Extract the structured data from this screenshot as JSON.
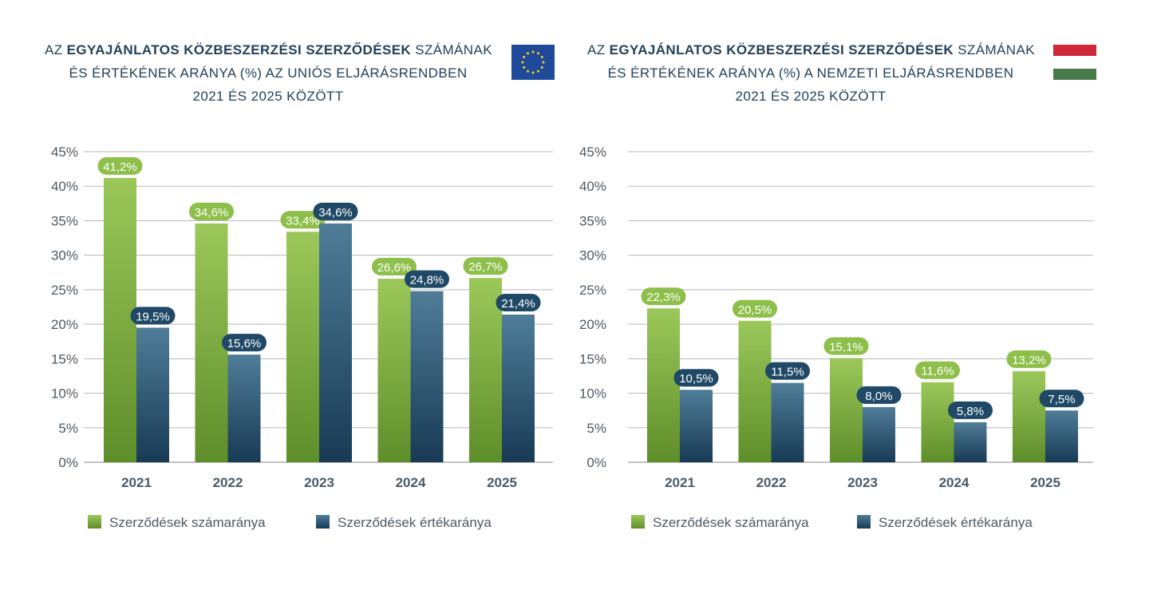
{
  "chart_data": [
    {
      "type": "bar",
      "title_parts": {
        "prefix": "AZ ",
        "bold": "EGYAJÁNLATOS KÖZBESZERZÉSI SZERZŐDÉSEK",
        "suffix": " SZÁMÁNAK",
        "line2": "ÉS ÉRTÉKÉNEK ARÁNYA (%) AZ UNIÓS ELJÁRÁSRENDBEN",
        "line3": "2021 ÉS 2025 KÖZÖTT"
      },
      "flag": "eu-flag",
      "categories": [
        "2021",
        "2022",
        "2023",
        "2024",
        "2025"
      ],
      "series": [
        {
          "name": "Szerződések számaránya",
          "values": [
            41.2,
            34.6,
            33.4,
            26.6,
            26.7
          ],
          "labels": [
            "41,2%",
            "34,6%",
            "33,4%",
            "26,6%",
            "26,7%"
          ],
          "color": "#8dbf4a"
        },
        {
          "name": "Szerződések értékaránya",
          "values": [
            19.5,
            15.6,
            34.6,
            24.8,
            21.4
          ],
          "labels": [
            "19,5%",
            "15,6%",
            "34,6%",
            "24,8%",
            "21,4%"
          ],
          "color": "#1f4966"
        }
      ],
      "ylim": [
        0,
        45
      ],
      "yticks": [
        "0%",
        "5%",
        "10%",
        "15%",
        "20%",
        "25%",
        "30%",
        "35%",
        "40%",
        "45%"
      ],
      "grid": true,
      "legend": "bottom"
    },
    {
      "type": "bar",
      "title_parts": {
        "prefix": "AZ ",
        "bold": "EGYAJÁNLATOS KÖZBESZERZÉSI SZERZŐDÉSEK",
        "suffix": " SZÁMÁNAK",
        "line2": "ÉS ÉRTÉKÉNEK ARÁNYA (%) A NEMZETI ELJÁRÁSRENDBEN",
        "line3": "2021 ÉS 2025 KÖZÖTT"
      },
      "flag": "hungarian-flag",
      "categories": [
        "2021",
        "2022",
        "2023",
        "2024",
        "2025"
      ],
      "series": [
        {
          "name": "Szerződések számaránya",
          "values": [
            22.3,
            20.5,
            15.1,
            11.6,
            13.2
          ],
          "labels": [
            "22,3%",
            "20,5%",
            "15,1%",
            "11,6%",
            "13,2%"
          ],
          "color": "#8dbf4a"
        },
        {
          "name": "Szerződések értékaránya",
          "values": [
            10.5,
            11.5,
            8.0,
            5.8,
            7.5
          ],
          "labels": [
            "10,5%",
            "11,5%",
            "8,0%",
            "5,8%",
            "7,5%"
          ],
          "color": "#1f4966"
        }
      ],
      "ylim": [
        0,
        45
      ],
      "yticks": [
        "0%",
        "5%",
        "10%",
        "15%",
        "20%",
        "25%",
        "30%",
        "35%",
        "40%",
        "45%"
      ],
      "grid": true,
      "legend": "bottom"
    }
  ],
  "colors": {
    "green_top": "#9cc85a",
    "green_bottom": "#5e8e2a",
    "blue_top": "#4f7d98",
    "blue_bottom": "#183a55",
    "green_label": "#8dbf4a",
    "blue_label": "#1f4966",
    "eu_blue": "#1f4a9a",
    "eu_star": "#f7d117",
    "hu_red": "#ce2939",
    "hu_green": "#477c4a"
  }
}
